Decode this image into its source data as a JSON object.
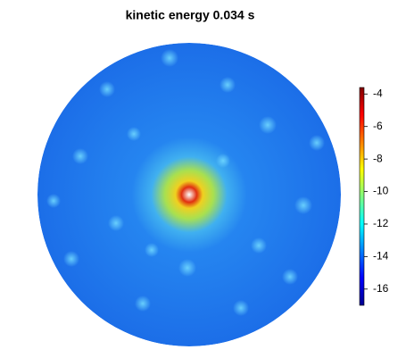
{
  "chart_data": {
    "type": "heatmap",
    "title": "kinetic energy  0.034 s",
    "colormap": "jet",
    "clim": [
      -17,
      -3.6
    ],
    "cticks": [
      -4,
      -6,
      -8,
      -10,
      -12,
      -14,
      -16
    ]
  }
}
